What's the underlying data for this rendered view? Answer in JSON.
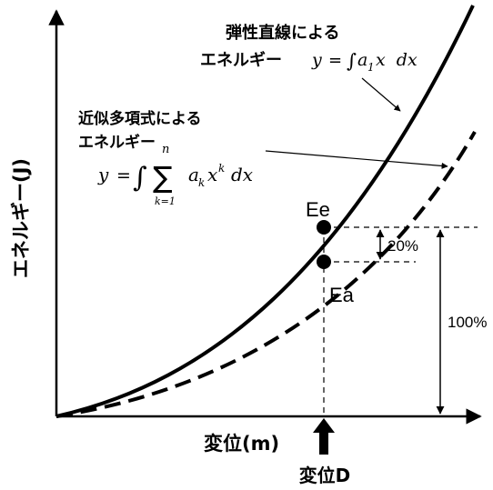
{
  "axes": {
    "y_label": "エネルギー(J)",
    "x_label": "変位(m)"
  },
  "curves": {
    "solid": {
      "label_line1": "弾性直線による",
      "label_line2_prefix": "エネルギー",
      "formula_y": "y",
      "formula_eq": "=",
      "formula_int": "∫",
      "formula_a": "a",
      "formula_sub": "1",
      "formula_rest": "x  dx"
    },
    "dashed": {
      "label_line1": "近似多項式による",
      "label_line2": "エネルギー",
      "formula_y": "y",
      "formula_eq": "=",
      "formula_int": "∫",
      "formula_sum": "∑",
      "formula_upper": "n",
      "formula_lower": "k=1",
      "formula_a": "a",
      "formula_sub": "k",
      "formula_x": "x",
      "formula_sup": "k",
      "formula_dx": "dx"
    }
  },
  "points": {
    "ee": "Ee",
    "ea": "Ea"
  },
  "measurements": {
    "small": "20%",
    "large": "100%"
  },
  "marker": {
    "label": "変位D"
  }
}
